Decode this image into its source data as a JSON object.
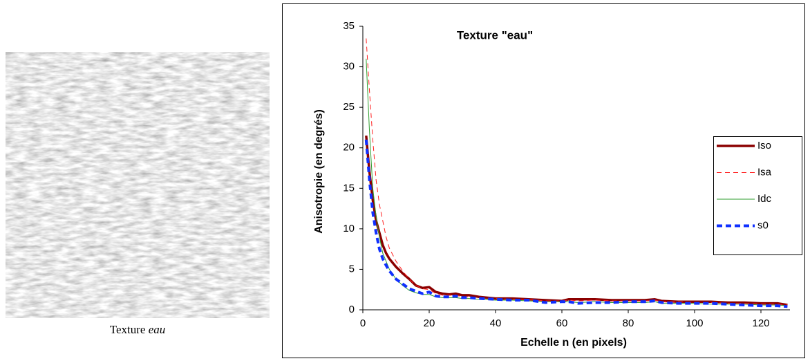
{
  "caption": {
    "text": "Texture",
    "emphasis": "eau"
  },
  "chart_data": {
    "type": "line",
    "title": "Texture \"eau\"",
    "x_label": "Echelle n (en pixels)",
    "y_label": "Anisotropie (en degrés)",
    "x": [
      1,
      2,
      3,
      4,
      5,
      6,
      7,
      8,
      10,
      12,
      14,
      16,
      18,
      20,
      22,
      24,
      26,
      28,
      30,
      32,
      35,
      40,
      45,
      50,
      55,
      60,
      62,
      65,
      70,
      75,
      80,
      85,
      88,
      90,
      95,
      100,
      105,
      110,
      115,
      120,
      125,
      128
    ],
    "series": [
      {
        "name": "Iso",
        "color": "#8b0000",
        "width": 3.5,
        "dash": "none",
        "values": [
          21.5,
          17,
          13.5,
          11,
          9.5,
          8,
          7,
          6.3,
          5.3,
          4.5,
          3.8,
          3.0,
          2.7,
          2.8,
          2.2,
          2.0,
          1.9,
          2.0,
          1.8,
          1.8,
          1.6,
          1.4,
          1.4,
          1.3,
          1.2,
          1.1,
          1.3,
          1.3,
          1.3,
          1.2,
          1.2,
          1.2,
          1.3,
          1.1,
          1.0,
          1.0,
          1.0,
          0.9,
          0.9,
          0.8,
          0.8,
          0.6
        ]
      },
      {
        "name": "Isa",
        "color": "#ff2020",
        "width": 1,
        "dash": "7 5",
        "values": [
          33.5,
          27,
          21,
          16,
          13,
          11,
          9,
          7.6,
          6,
          4.8,
          3.8,
          3.0,
          2.6,
          2.5,
          2.0,
          1.8,
          1.8,
          1.8,
          1.6,
          1.6,
          1.5,
          1.4,
          1.3,
          1.3,
          1.1,
          1.1,
          1.2,
          1.1,
          1.2,
          1.1,
          1.1,
          1.1,
          1.2,
          1.0,
          1.0,
          0.9,
          0.9,
          0.8,
          0.8,
          0.7,
          0.7,
          0.6
        ]
      },
      {
        "name": "Idc",
        "color": "#2e9e2e",
        "width": 1,
        "dash": "none",
        "values": [
          31,
          22,
          15,
          11.5,
          9,
          7,
          6,
          5,
          3.8,
          3.0,
          2.4,
          2.1,
          1.9,
          1.9,
          1.6,
          1.5,
          1.5,
          1.5,
          1.4,
          1.4,
          1.3,
          1.2,
          1.2,
          1.1,
          1.0,
          1.0,
          1.0,
          0.9,
          1.0,
          0.9,
          0.9,
          0.9,
          1.0,
          0.8,
          0.8,
          0.8,
          0.7,
          0.7,
          0.7,
          0.6,
          0.6,
          0.5
        ]
      },
      {
        "name": "s0",
        "color": "#1030ff",
        "width": 4,
        "dash": "8 5",
        "values": [
          21,
          16,
          12,
          9.5,
          7.5,
          6.3,
          5.5,
          4.8,
          3.8,
          3.2,
          2.6,
          2.3,
          2.0,
          2.2,
          1.7,
          1.6,
          1.6,
          1.7,
          1.5,
          1.5,
          1.4,
          1.3,
          1.2,
          1.2,
          0.9,
          1.0,
          1.0,
          0.8,
          0.9,
          0.9,
          1.0,
          1.0,
          1.1,
          0.9,
          0.8,
          0.8,
          0.8,
          0.7,
          0.6,
          0.5,
          0.5,
          0.4
        ]
      }
    ],
    "xlim": [
      0,
      128.75
    ],
    "xticks": [
      0,
      20,
      40,
      60,
      80,
      100,
      120
    ],
    "ylim": [
      0,
      35
    ],
    "yticks": [
      0,
      5,
      10,
      15,
      20,
      25,
      30,
      35
    ],
    "grid": false,
    "legend": "right"
  }
}
